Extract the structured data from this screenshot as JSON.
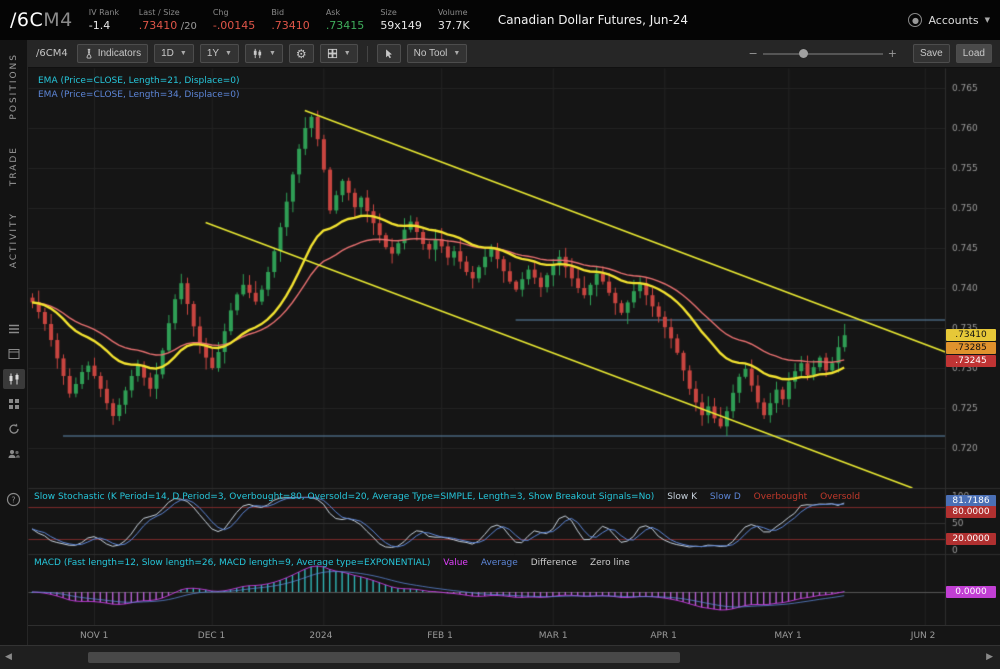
{
  "header": {
    "symbol_root": "/6C",
    "symbol_month": "M4",
    "description": "Canadian Dollar Futures, Jun-24",
    "stats": {
      "iv_rank": {
        "label": "IV Rank",
        "value": "-1.4"
      },
      "last": {
        "label": "Last / Size",
        "value": ".73410",
        "size": "/20"
      },
      "chg": {
        "label": "Chg",
        "value": "-.00145"
      },
      "bid": {
        "label": "Bid",
        "value": ".73410"
      },
      "ask": {
        "label": "Ask",
        "value": ".73415"
      },
      "size": {
        "label": "Size",
        "value": "59x149"
      },
      "volume": {
        "label": "Volume",
        "value": "37.7K"
      }
    },
    "accounts_label": "Accounts"
  },
  "sidebar": {
    "tabs": [
      "POSITIONS",
      "TRADE",
      "ACTIVITY"
    ],
    "icons": [
      "list-icon",
      "window-icon",
      "chart-icon",
      "grid-icon",
      "refresh-icon",
      "users-icon",
      "help-icon"
    ]
  },
  "toolbar": {
    "symbol": "/6CM4",
    "indicators_label": "Indicators",
    "timeframe": "1D",
    "range": "1Y",
    "tool": "No Tool",
    "save_label": "Save",
    "load_label": "Load"
  },
  "chart": {
    "ema1_label": "EMA (Price=CLOSE, Length=21, Displace=0)",
    "ema2_label": "EMA (Price=CLOSE, Length=34, Displace=0)",
    "stoch": {
      "title": "Slow Stochastic (K Period=14, D Period=3, Overbought=80, Oversold=20, Average Type=SIMPLE, Length=3, Show Breakout Signals=No)",
      "legend": [
        {
          "label": "Slow K"
        },
        {
          "label": "Slow D"
        },
        {
          "label": "Overbought"
        },
        {
          "label": "Oversold"
        }
      ]
    },
    "macd": {
      "title": "MACD (Fast length=12, Slow length=26, MACD length=9, Average type=EXPONENTIAL)",
      "legend": [
        {
          "label": "Value"
        },
        {
          "label": "Average"
        },
        {
          "label": "Difference"
        },
        {
          "label": "Zero line"
        }
      ]
    }
  },
  "chart_data": {
    "type": "candlestick",
    "symbol": "/6CM4",
    "title": "Canadian Dollar Futures, Jun-24, 1D 1Y",
    "y_axis": {
      "ticks": [
        {
          "label": "0.765",
          "value": 0.765
        },
        {
          "label": "0.760",
          "value": 0.76
        },
        {
          "label": "0.755",
          "value": 0.755
        },
        {
          "label": "0.750",
          "value": 0.75
        },
        {
          "label": "0.745",
          "value": 0.745
        },
        {
          "label": "0.740",
          "value": 0.74
        },
        {
          "label": "0.735",
          "value": 0.735
        },
        {
          "label": "0.730",
          "value": 0.73
        },
        {
          "label": "0.725",
          "value": 0.725
        },
        {
          "label": "0.720",
          "value": 0.72
        }
      ],
      "range": [
        0.7675,
        0.7151
      ]
    },
    "time_axis": [
      {
        "label": "NOV 1",
        "index": 10
      },
      {
        "label": "DEC 1",
        "index": 29
      },
      {
        "label": "2024",
        "index": 47
      },
      {
        "label": "FEB 1",
        "index": 66
      },
      {
        "label": "MAR 1",
        "index": 84
      },
      {
        "label": "APR 1",
        "index": 102
      },
      {
        "label": "MAY 1",
        "index": 122
      },
      {
        "label": "JUN 2",
        "index": 144
      }
    ],
    "stoch_axis": [
      "100",
      "50",
      "0"
    ],
    "price_series": {
      "closes": [
        0.7382,
        0.737,
        0.7355,
        0.7335,
        0.7312,
        0.729,
        0.7268,
        0.728,
        0.7295,
        0.7303,
        0.729,
        0.7274,
        0.7256,
        0.724,
        0.7254,
        0.7272,
        0.729,
        0.7303,
        0.7288,
        0.7274,
        0.7292,
        0.7322,
        0.7356,
        0.7386,
        0.7406,
        0.738,
        0.7352,
        0.733,
        0.7313,
        0.73,
        0.732,
        0.7346,
        0.7372,
        0.7392,
        0.7404,
        0.7394,
        0.7383,
        0.7398,
        0.742,
        0.7446,
        0.7476,
        0.7508,
        0.7542,
        0.7574,
        0.76,
        0.7614,
        0.7586,
        0.7548,
        0.7497,
        0.7516,
        0.7534,
        0.7519,
        0.7501,
        0.7513,
        0.7496,
        0.7481,
        0.7466,
        0.7451,
        0.7443,
        0.7456,
        0.7473,
        0.7483,
        0.747,
        0.7455,
        0.7448,
        0.7461,
        0.7452,
        0.7438,
        0.7446,
        0.7433,
        0.742,
        0.7412,
        0.7426,
        0.7439,
        0.7449,
        0.7436,
        0.7421,
        0.7408,
        0.7398,
        0.7411,
        0.7423,
        0.7413,
        0.7401,
        0.7416,
        0.7429,
        0.7439,
        0.7426,
        0.7412,
        0.74,
        0.7391,
        0.7404,
        0.7418,
        0.7408,
        0.7394,
        0.7381,
        0.7369,
        0.7382,
        0.7396,
        0.7406,
        0.7391,
        0.7377,
        0.7364,
        0.7351,
        0.7337,
        0.7319,
        0.7297,
        0.7274,
        0.7257,
        0.7241,
        0.7252,
        0.7237,
        0.7227,
        0.7246,
        0.7269,
        0.7289,
        0.7299,
        0.7278,
        0.7257,
        0.7241,
        0.7256,
        0.7273,
        0.7261,
        0.7283,
        0.7296,
        0.7306,
        0.7291,
        0.7301,
        0.7313,
        0.7297,
        0.7306,
        0.7326,
        0.7341
      ]
    },
    "overlays": [
      {
        "name": "EMA21",
        "color": "#f2e230"
      },
      {
        "name": "EMA34",
        "color": "#e87070"
      }
    ],
    "annotations": {
      "h_lines": [
        {
          "price": 0.736,
          "from_index": 78,
          "to_index": 148,
          "color": "#6189ad"
        },
        {
          "price": 0.7215,
          "from_index": 5,
          "to_index": 148,
          "color": "#6189ad"
        }
      ],
      "trend_lines": [
        {
          "from": [
            44,
            0.7622
          ],
          "to": [
            148,
            0.7318
          ],
          "color": "#e8e832"
        },
        {
          "from": [
            28,
            0.7482
          ],
          "to": [
            142,
            0.715
          ],
          "color": "#e8e832"
        }
      ]
    },
    "indicators": {
      "stochastic": {
        "k_period": 14,
        "d_period": 3,
        "overbought": 80,
        "oversold": 20,
        "last_k": 81.7186
      },
      "macd": {
        "fast": 12,
        "slow": 26,
        "signal": 9,
        "last": 0.0
      }
    },
    "badges": {
      "price": [
        {
          "text": ".73410",
          "bg": "#e6c838",
          "fg": "#111",
          "price": 0.7341
        },
        {
          "text": ".73285",
          "bg": "#e0922d",
          "fg": "#111",
          "price": 0.7329
        },
        {
          "text": ".73245",
          "bg": "#c03434",
          "fg": "#fff",
          "price": 0.7316
        }
      ],
      "stoch": [
        {
          "text": "81.7186",
          "bg": "#4a6fb5",
          "fg": "#fff",
          "value": 81.7186
        },
        {
          "text": "80.0000",
          "bg": "#b03030",
          "fg": "#fff",
          "value": 80
        },
        {
          "text": "20.0000",
          "bg": "#b03030",
          "fg": "#fff",
          "value": 20
        }
      ],
      "macd": [
        {
          "text": "0.0000",
          "bg": "#c13fd4",
          "fg": "#fff",
          "value": 0
        }
      ]
    },
    "colors": {
      "bg": "#151515",
      "up": "#2f9e55",
      "down": "#c94540",
      "ema21": "#f2e230",
      "ema34": "#e87070",
      "channel": "#e8e832",
      "hline": "#6189ad",
      "stoch_k": "#c8d2dc",
      "stoch_d": "#5c85d6",
      "band": "#7a2a2a",
      "macd_pos": "#2fb5b5",
      "macd_neg": "#b45fd0",
      "value": "#e040fb",
      "average": "#5c85d6",
      "grid": "#232323",
      "axis_text": "#9a9a9a"
    }
  }
}
